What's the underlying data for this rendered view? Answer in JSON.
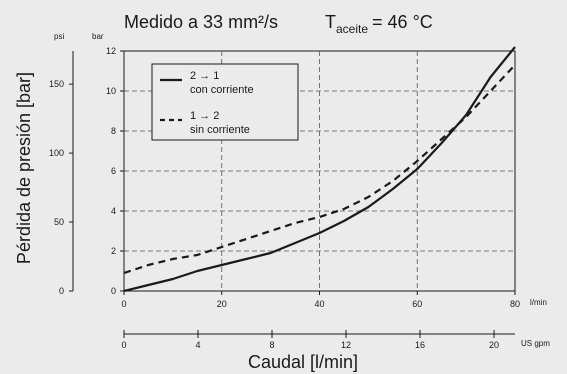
{
  "chart_data": {
    "type": "line",
    "title": "Medido a 33 mm²/s",
    "title_condition": {
      "symbol": "T",
      "subscript": "aceite",
      "value": "= 46 °C"
    },
    "ylabel": "Pérdida de presión [bar]",
    "xlabel": "Caudal [l/min]",
    "x_unit": "l/min",
    "x2_unit": "US gpm",
    "y_unit_bar": "bar",
    "y_unit_psi": "psi",
    "xlim": [
      0,
      80
    ],
    "ylim": [
      0,
      12
    ],
    "x_ticks": [
      "0",
      "20",
      "40",
      "60",
      "80"
    ],
    "y_ticks": [
      "0",
      "2",
      "4",
      "6",
      "8",
      "10",
      "12"
    ],
    "psi_ticks": [
      {
        "label": "0",
        "value": 0
      },
      {
        "label": "50",
        "value": 50
      },
      {
        "label": "100",
        "value": 100
      },
      {
        "label": "150",
        "value": 150
      }
    ],
    "gpm_ticks": [
      {
        "label": "0",
        "value": 0
      },
      {
        "label": "4",
        "value": 4
      },
      {
        "label": "8",
        "value": 8
      },
      {
        "label": "12",
        "value": 12
      },
      {
        "label": "16",
        "value": 16
      },
      {
        "label": "20",
        "value": 20
      }
    ],
    "grid": true,
    "legend_position": "top-left",
    "series": [
      {
        "name": "2 → 1",
        "name_line2": "con corriente",
        "style": "solid",
        "points": [
          [
            0,
            0
          ],
          [
            5,
            0.3
          ],
          [
            10,
            0.6
          ],
          [
            15,
            1.0
          ],
          [
            20,
            1.3
          ],
          [
            25,
            1.6
          ],
          [
            30,
            1.9
          ],
          [
            35,
            2.4
          ],
          [
            40,
            2.9
          ],
          [
            45,
            3.5
          ],
          [
            50,
            4.2
          ],
          [
            55,
            5.1
          ],
          [
            60,
            6.1
          ],
          [
            65,
            7.4
          ],
          [
            70,
            8.8
          ],
          [
            75,
            10.7
          ],
          [
            80,
            12.2
          ]
        ]
      },
      {
        "name": "1 → 2",
        "name_line2": "sin corriente",
        "style": "dashed",
        "points": [
          [
            0,
            0.9
          ],
          [
            5,
            1.3
          ],
          [
            10,
            1.6
          ],
          [
            15,
            1.8
          ],
          [
            20,
            2.2
          ],
          [
            25,
            2.6
          ],
          [
            30,
            3.0
          ],
          [
            35,
            3.4
          ],
          [
            40,
            3.7
          ],
          [
            45,
            4.1
          ],
          [
            50,
            4.7
          ],
          [
            55,
            5.5
          ],
          [
            60,
            6.5
          ],
          [
            65,
            7.6
          ],
          [
            70,
            8.7
          ],
          [
            75,
            10.0
          ],
          [
            80,
            11.3
          ]
        ]
      }
    ]
  }
}
